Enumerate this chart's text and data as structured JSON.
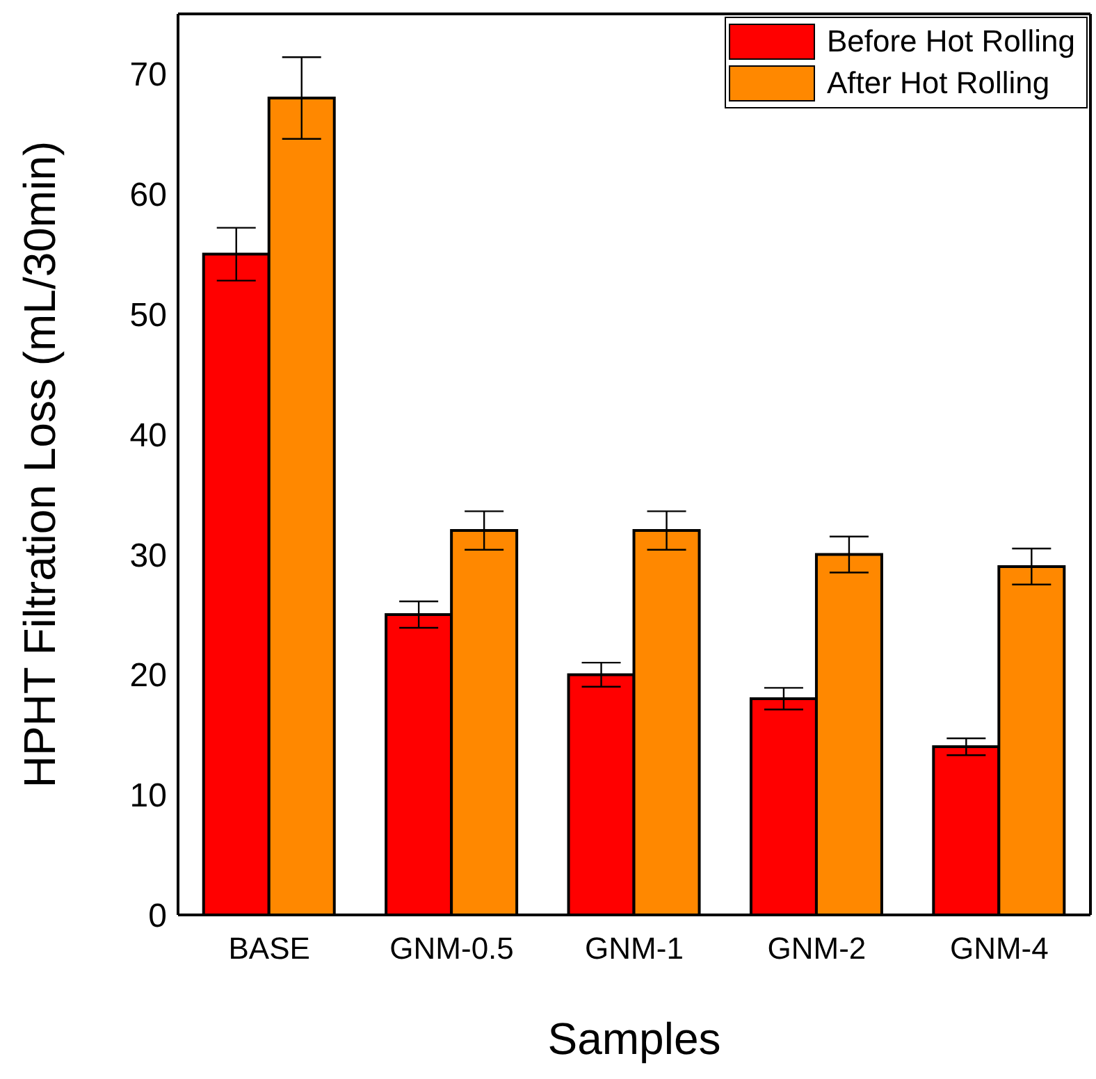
{
  "chart_data": {
    "type": "bar",
    "xlabel": "Samples",
    "ylabel": "HPHT Filtration Loss (mL/30min)",
    "categories": [
      "BASE",
      "GNM-0.5",
      "GNM-1",
      "GNM-2",
      "GNM-4"
    ],
    "series": [
      {
        "name": "Before Hot Rolling",
        "color": "#ff0000",
        "values": [
          55,
          25,
          20,
          18,
          14
        ],
        "errors": [
          2.2,
          1.1,
          1,
          0.9,
          0.7
        ]
      },
      {
        "name": "After Hot Rolling",
        "color": "#ff8800",
        "values": [
          68,
          32,
          32,
          30,
          29
        ],
        "errors": [
          3.4,
          1.6,
          1.6,
          1.5,
          1.5
        ]
      }
    ],
    "ylim": [
      0,
      75
    ],
    "yticks": [
      0,
      10,
      20,
      30,
      40,
      50,
      60,
      70
    ],
    "grid": false,
    "legend": "top right"
  }
}
